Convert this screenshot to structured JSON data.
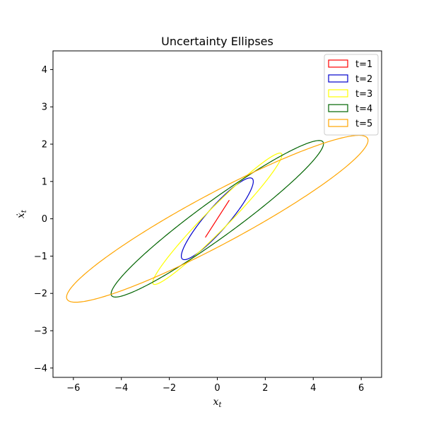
{
  "chart_data": {
    "type": "line",
    "title": "Uncertainty Ellipses",
    "xlabel": {
      "base": "x",
      "sub": "t"
    },
    "ylabel": {
      "base": "ẋ",
      "sub": "t"
    },
    "xlim": [
      -6.85,
      6.85
    ],
    "ylim": [
      -4.25,
      4.5
    ],
    "xticks": [
      -6,
      -4,
      -2,
      0,
      2,
      4,
      6
    ],
    "xtick_labels": [
      "−6",
      "−4",
      "−2",
      "0",
      "2",
      "4",
      "6"
    ],
    "yticks": [
      -4,
      -3,
      -2,
      -1,
      0,
      1,
      2,
      3,
      4
    ],
    "ytick_labels": [
      "−4",
      "−3",
      "−2",
      "−1",
      "0",
      "1",
      "2",
      "3",
      "4"
    ],
    "legend_position": "top-right",
    "grid": false,
    "series": [
      {
        "name": "t=1",
        "color": "#ff0000",
        "shape": "ellipse",
        "center": [
          0,
          0
        ],
        "cov": [
          [
            0.25,
            0.25
          ],
          [
            0.25,
            0.25
          ]
        ]
      },
      {
        "name": "t=2",
        "color": "#0000cc",
        "shape": "ellipse",
        "center": [
          0,
          0
        ],
        "cov": [
          [
            2.25,
            1.5
          ],
          [
            1.5,
            1.2
          ]
        ]
      },
      {
        "name": "t=3",
        "color": "#ffff00",
        "shape": "ellipse",
        "center": [
          0,
          0
        ],
        "cov": [
          [
            7.25,
            4.6
          ],
          [
            4.6,
            3.1
          ]
        ]
      },
      {
        "name": "t=4",
        "color": "#006400",
        "shape": "ellipse",
        "center": [
          0,
          0
        ],
        "cov": [
          [
            19.6,
            8.9
          ],
          [
            8.9,
            4.4
          ]
        ]
      },
      {
        "name": "t=5",
        "color": "#ffa500",
        "shape": "ellipse",
        "center": [
          0,
          0
        ],
        "cov": [
          [
            39.5,
            13.2
          ],
          [
            13.2,
            5.0
          ]
        ]
      }
    ]
  }
}
